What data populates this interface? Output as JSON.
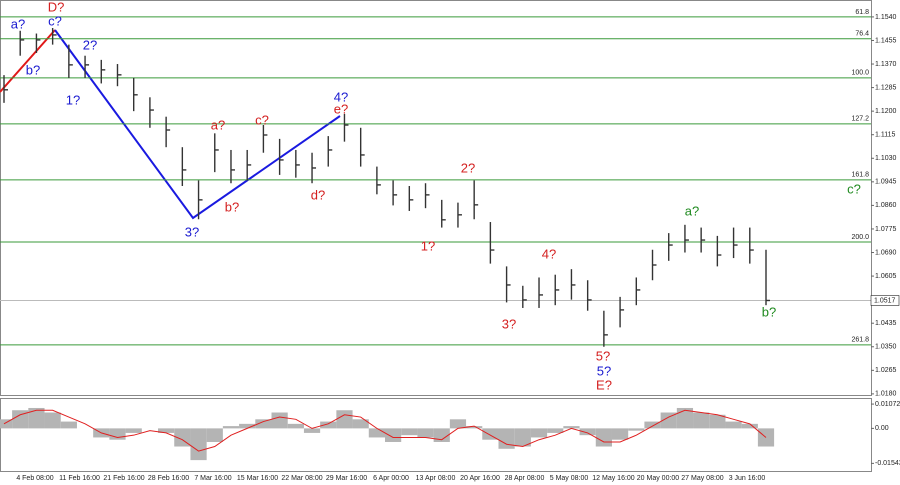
{
  "chart_data": {
    "type": "ohlc",
    "high": [
      1.133,
      1.149,
      1.148,
      1.15,
      1.144,
      1.14,
      1.1385,
      1.137,
      1.132,
      1.125,
      1.118,
      1.107,
      1.095,
      1.112,
      1.106,
      1.106,
      1.115,
      1.11,
      1.106,
      1.105,
      1.111,
      1.119,
      1.114,
      1.1,
      1.095,
      1.093,
      1.094,
      1.088,
      1.087,
      1.095,
      1.08,
      1.064,
      1.057,
      1.06,
      1.061,
      1.063,
      1.059,
      1.048,
      1.053,
      1.06,
      1.07,
      1.076,
      1.079,
      1.078,
      1.075,
      1.078,
      1.078,
      1.07
    ],
    "low": [
      1.123,
      1.14,
      1.141,
      1.144,
      1.132,
      1.132,
      1.13,
      1.129,
      1.12,
      1.114,
      1.107,
      1.093,
      1.081,
      1.098,
      1.094,
      1.095,
      1.105,
      1.097,
      1.096,
      1.094,
      1.1,
      1.109,
      1.1,
      1.09,
      1.086,
      1.084,
      1.085,
      1.078,
      1.078,
      1.081,
      1.065,
      1.051,
      1.049,
      1.049,
      1.05,
      1.052,
      1.048,
      1.035,
      1.042,
      1.05,
      1.059,
      1.066,
      1.069,
      1.069,
      1.064,
      1.067,
      1.065,
      1.05
    ],
    "close": [
      1.1277,
      1.1457,
      1.1457,
      1.1475,
      1.1367,
      1.1367,
      1.1349,
      1.1331,
      1.1259,
      1.1204,
      1.1132,
      1.0988,
      1.088,
      1.106,
      1.0988,
      1.1006,
      1.1114,
      1.1024,
      1.1006,
      1.0995,
      1.106,
      1.115,
      1.1042,
      1.0934,
      1.0898,
      1.088,
      1.0898,
      1.0808,
      1.0826,
      1.0862,
      1.0699,
      1.0573,
      1.0519,
      1.0537,
      1.0555,
      1.0573,
      1.0519,
      1.0393,
      1.0483,
      1.0555,
      1.0645,
      1.0717,
      1.0735,
      1.0735,
      1.0681,
      1.0717,
      1.0699,
      1.0517
    ],
    "color": "#333333",
    "current_price": 1.0517,
    "ylim": [
      1.0176,
      1.1601
    ],
    "yticks": [
      {
        "value": 1.154,
        "label": "1.1540"
      },
      1.1455,
      {
        "value": 1.137,
        "label": "1.1370"
      },
      1.1285,
      {
        "value": 1.12,
        "label": "1.1200"
      },
      1.1115,
      {
        "value": 1.103,
        "label": "1.1030"
      },
      1.0945,
      {
        "value": 1.086,
        "label": "1.0860"
      },
      1.0775,
      {
        "value": 1.069,
        "label": "1.0690"
      },
      1.0605,
      {
        "value": 1.052,
        "label": "1.0520"
      },
      1.0435,
      {
        "value": 1.035,
        "label": "1.0350"
      },
      1.0265,
      {
        "value": 1.018,
        "label": "1.0180"
      }
    ],
    "fib_levels": [
      {
        "value": 1.154,
        "label": "61.8"
      },
      {
        "value": 1.1461,
        "label": "76.4"
      },
      {
        "value": 1.132,
        "label": "100.0"
      },
      {
        "value": 1.1154,
        "label": "127.2"
      },
      {
        "value": 1.0952,
        "label": "161.8"
      },
      {
        "value": 1.0728,
        "label": "200.0"
      },
      {
        "value": 1.0357,
        "label": "261.8"
      }
    ],
    "fib_color": "#3a9a3a",
    "x_labels": [
      "4 Feb 08:00",
      "11 Feb 16:00",
      "21 Feb 16:00",
      "28 Feb 16:00",
      "7 Mar 16:00",
      "15 Mar 16:00",
      "22 Mar 08:00",
      "29 Mar 16:00",
      "6 Apr 00:00",
      "13 Apr 08:00",
      "20 Apr 16:00",
      "28 Apr 08:00",
      "5 May 08:00",
      "12 May 16:00",
      "20 May 00:00",
      "27 May 08:00",
      "3 Jun 16:00"
    ],
    "annotations": [
      {
        "text": "D?",
        "color": "#d42020"
      },
      {
        "text": "a?",
        "color": "#1a1ad0"
      },
      {
        "text": "c?",
        "color": "#1a1ad0"
      },
      {
        "text": "b?",
        "color": "#1a1ad0"
      },
      {
        "text": "2?",
        "color": "#1a1ad0"
      },
      {
        "text": "1?",
        "color": "#1a1ad0"
      },
      {
        "text": "3?",
        "color": "#1a1ad0"
      },
      {
        "text": "a?",
        "color": "#d42020"
      },
      {
        "text": "c?",
        "color": "#d42020"
      },
      {
        "text": "b?",
        "color": "#d42020"
      },
      {
        "text": "4?",
        "color": "#1a1ad0"
      },
      {
        "text": "e?",
        "color": "#d42020"
      },
      {
        "text": "d?",
        "color": "#d42020"
      },
      {
        "text": "2?",
        "color": "#d42020"
      },
      {
        "text": "1?",
        "color": "#d42020"
      },
      {
        "text": "4?",
        "color": "#d42020"
      },
      {
        "text": "3?",
        "color": "#d42020"
      },
      {
        "text": "5?",
        "color": "#d42020"
      },
      {
        "text": "5?",
        "color": "#1a1ad0"
      },
      {
        "text": "E?",
        "color": "#d42020"
      },
      {
        "text": "a?",
        "color": "#1f8a1f"
      },
      {
        "text": "b?",
        "color": "#1f8a1f"
      },
      {
        "text": "c?",
        "color": "#1f8a1f"
      }
    ],
    "oscillator": {
      "values": [
        0.004,
        0.008,
        0.009,
        0.007,
        0.003,
        0.0,
        -0.004,
        -0.005,
        -0.002,
        0.0,
        -0.002,
        -0.008,
        -0.014,
        -0.006,
        0.001,
        0.002,
        0.004,
        0.007,
        0.002,
        -0.002,
        0.003,
        0.008,
        0.004,
        -0.004,
        -0.006,
        -0.003,
        -0.004,
        -0.006,
        0.004,
        0.001,
        -0.005,
        -0.009,
        -0.008,
        -0.004,
        -0.002,
        0.001,
        -0.003,
        -0.008,
        -0.005,
        -0.001,
        0.003,
        0.007,
        0.009,
        0.007,
        0.006,
        0.003,
        0.002,
        -0.008
      ],
      "signal": [
        0.002,
        0.006,
        0.008,
        0.008,
        0.005,
        0.002,
        -0.002,
        -0.004,
        -0.003,
        -0.001,
        -0.002,
        -0.005,
        -0.01,
        -0.008,
        -0.003,
        0.0,
        0.003,
        0.005,
        0.004,
        0.0,
        0.002,
        0.006,
        0.005,
        0.0,
        -0.004,
        -0.004,
        -0.004,
        -0.005,
        0.0,
        0.001,
        -0.003,
        -0.007,
        -0.008,
        -0.005,
        -0.003,
        0.0,
        -0.002,
        -0.006,
        -0.006,
        -0.003,
        0.001,
        0.005,
        0.008,
        0.007,
        0.006,
        0.004,
        0.002,
        -0.004
      ],
      "color": "#b4b4b4",
      "signal_color": "#e02020",
      "ylim": [
        -0.0188,
        0.0134
      ],
      "yticks": [
        0.01072,
        {
          "value": 0,
          "label": "0.00"
        },
        -0.01543
      ]
    }
  }
}
